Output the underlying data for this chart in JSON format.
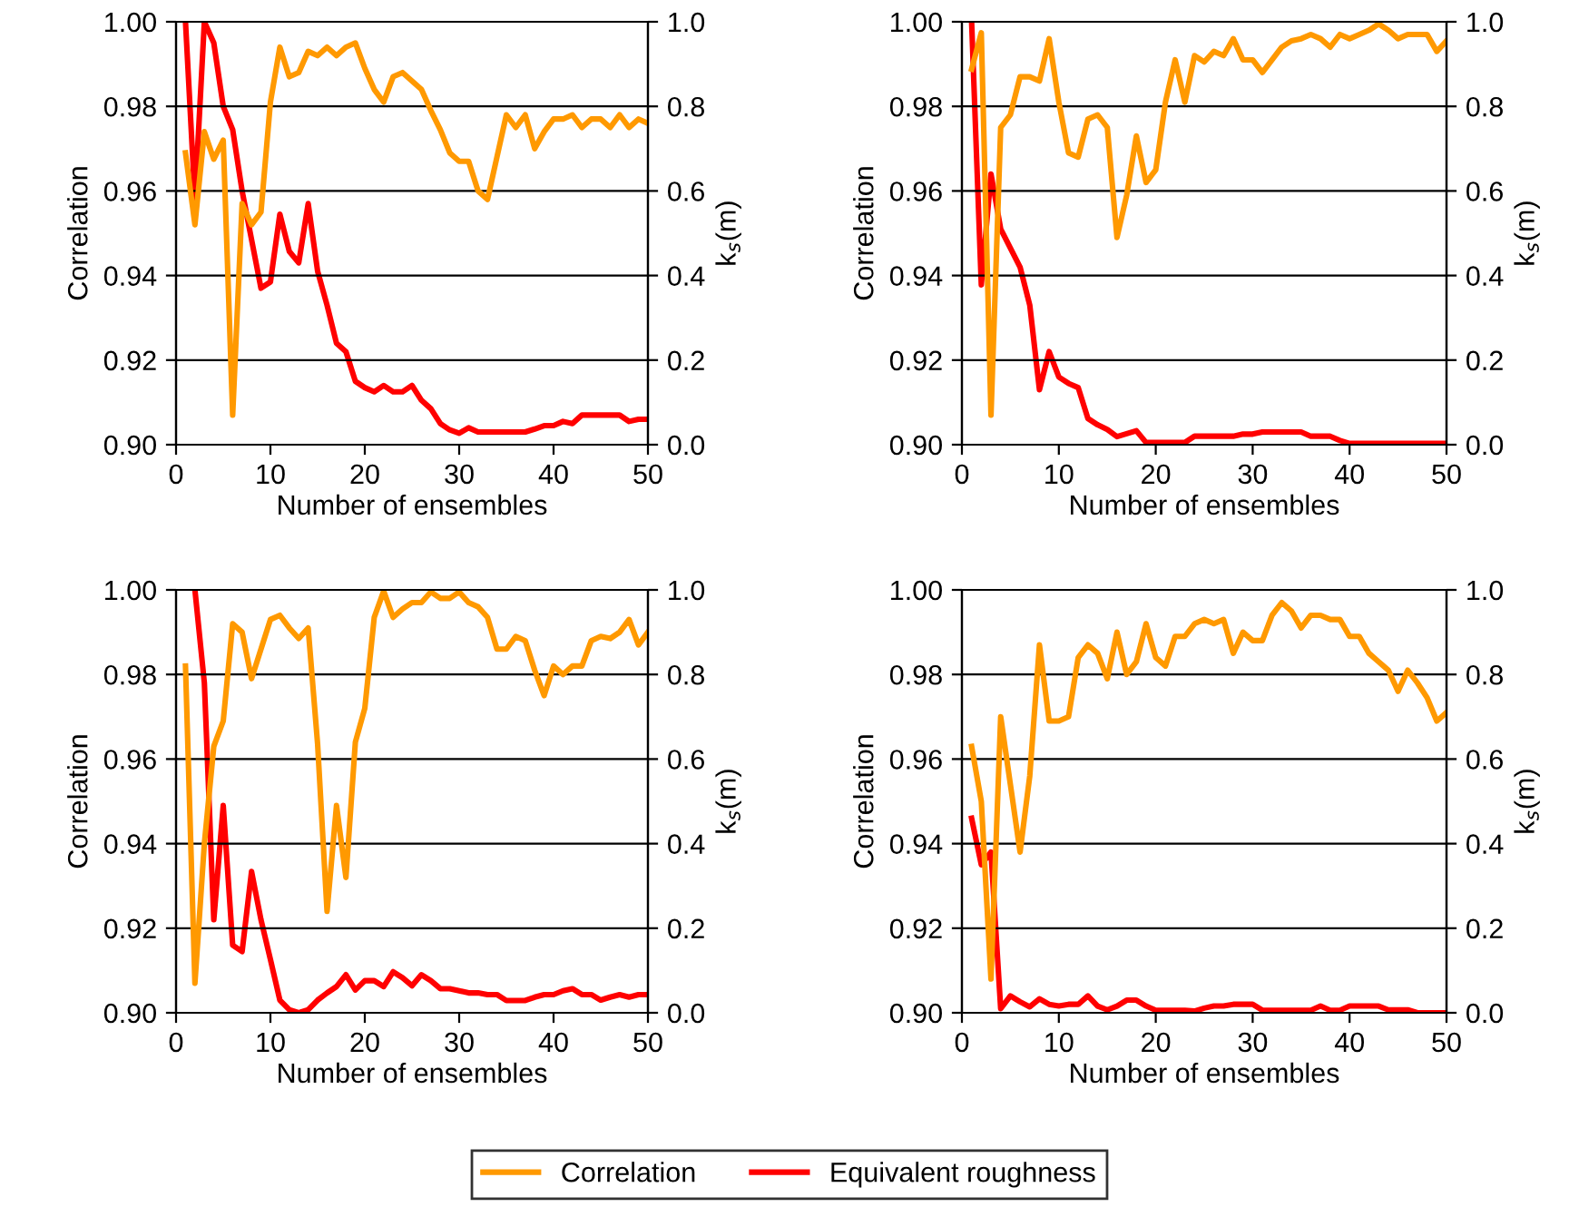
{
  "chart_data": [
    {
      "type": "line",
      "xlabel": "Number of ensembles",
      "ylabel": "Correlation",
      "y2label": "k$_{s}$(m)",
      "grid": "y",
      "tick_labels": "xy",
      "legend": "bottom",
      "x": [
        1,
        2,
        3,
        4,
        5,
        6,
        7,
        8,
        9,
        10,
        11,
        12,
        13,
        14,
        15,
        16,
        17,
        18,
        19,
        20,
        21,
        22,
        23,
        24,
        25,
        26,
        27,
        28,
        29,
        30,
        31,
        32,
        33,
        34,
        35,
        36,
        37,
        38,
        39,
        40,
        41,
        42,
        43,
        44,
        45,
        46,
        47,
        48,
        49,
        50
      ],
      "xlim": [
        0,
        50
      ],
      "xticks": [
        0,
        10,
        20,
        30,
        40,
        50
      ],
      "ylim": [
        0.9,
        1.0
      ],
      "yticks": [
        {
          "value": 0.9,
          "label": "0.90"
        },
        {
          "value": 0.92,
          "label": "0.92"
        },
        {
          "value": 0.94,
          "label": "0.94"
        },
        {
          "value": 0.96,
          "label": "0.96"
        },
        {
          "value": 0.98,
          "label": "0.98"
        },
        {
          "value": 1.0,
          "label": "1.00"
        }
      ],
      "y2lim": [
        0,
        1
      ],
      "y2ticks": [
        {
          "value": 0,
          "label": "0.0"
        },
        {
          "value": 0.2,
          "label": "0.2"
        },
        {
          "value": 0.4,
          "label": "0.4"
        },
        {
          "value": 0.6,
          "label": "0.6"
        },
        {
          "value": 0.8,
          "label": "0.8"
        },
        {
          "value": 1,
          "label": "1.0"
        }
      ],
      "series": [
        {
          "name": "Correlation",
          "color": "#ff9900",
          "values": [
            0.969,
            0.952,
            0.974,
            0.9675,
            0.972,
            0.907,
            0.957,
            0.952,
            0.955,
            0.981,
            0.994,
            0.987,
            0.988,
            0.993,
            0.992,
            0.994,
            0.992,
            0.994,
            0.995,
            0.989,
            0.984,
            0.981,
            0.987,
            0.988,
            0.986,
            0.984,
            0.979,
            0.9745,
            0.969,
            0.967,
            0.967,
            0.96,
            0.958,
            0.968,
            0.978,
            0.975,
            0.978,
            0.97,
            0.974,
            0.977,
            0.977,
            0.978,
            0.975,
            0.977,
            0.977,
            0.975,
            0.978,
            0.975,
            0.977,
            0.976
          ]
        },
        {
          "name": "Equivalent roughness",
          "color": "#ff0000",
          "axis": "y2",
          "values": [
            1.0,
            0.58,
            1.0,
            0.95,
            0.8,
            0.745,
            0.6,
            0.485,
            0.37,
            0.385,
            0.545,
            0.457,
            0.43,
            0.57,
            0.41,
            0.33,
            0.24,
            0.22,
            0.15,
            0.135,
            0.125,
            0.14,
            0.125,
            0.125,
            0.14,
            0.105,
            0.085,
            0.05,
            0.035,
            0.027,
            0.04,
            0.03,
            0.03,
            0.03,
            0.03,
            0.03,
            0.03,
            0.037,
            0.045,
            0.045,
            0.055,
            0.05,
            0.07,
            0.07,
            0.07,
            0.07,
            0.07,
            0.055,
            0.06,
            0.06
          ]
        }
      ]
    },
    {
      "type": "line",
      "xlabel": "Number of ensembles",
      "ylabel": "Correlation",
      "y2label": "k$_{s}$(m)",
      "grid": "y",
      "tick_labels": "xy",
      "x": [
        1,
        2,
        3,
        4,
        5,
        6,
        7,
        8,
        9,
        10,
        11,
        12,
        13,
        14,
        15,
        16,
        17,
        18,
        19,
        20,
        21,
        22,
        23,
        24,
        25,
        26,
        27,
        28,
        29,
        30,
        31,
        32,
        33,
        34,
        35,
        36,
        37,
        38,
        39,
        40,
        41,
        42,
        43,
        44,
        45,
        46,
        47,
        48,
        49,
        50
      ],
      "xlim": [
        0,
        50
      ],
      "xticks": [
        0,
        10,
        20,
        30,
        40,
        50
      ],
      "ylim": [
        0.9,
        1.0
      ],
      "yticks": [
        {
          "value": 0.9,
          "label": "0.90"
        },
        {
          "value": 0.92,
          "label": "0.92"
        },
        {
          "value": 0.94,
          "label": "0.94"
        },
        {
          "value": 0.96,
          "label": "0.96"
        },
        {
          "value": 0.98,
          "label": "0.98"
        },
        {
          "value": 1.0,
          "label": "1.00"
        }
      ],
      "y2lim": [
        0,
        1
      ],
      "y2ticks": [
        {
          "value": 0,
          "label": "0.0"
        },
        {
          "value": 0.2,
          "label": "0.2"
        },
        {
          "value": 0.4,
          "label": "0.4"
        },
        {
          "value": 0.6,
          "label": "0.6"
        },
        {
          "value": 0.8,
          "label": "0.8"
        },
        {
          "value": 1,
          "label": "1.0"
        }
      ],
      "series": [
        {
          "color": "#ff9900",
          "values": [
            0.9888,
            0.9974,
            0.907,
            0.975,
            0.978,
            0.987,
            0.987,
            0.986,
            0.996,
            0.981,
            0.969,
            0.968,
            0.977,
            0.978,
            0.975,
            0.949,
            0.959,
            0.973,
            0.962,
            0.965,
            0.981,
            0.991,
            0.981,
            0.992,
            0.9905,
            0.993,
            0.992,
            0.996,
            0.991,
            0.991,
            0.988,
            0.991,
            0.994,
            0.9955,
            0.996,
            0.997,
            0.996,
            0.994,
            0.997,
            0.996,
            0.997,
            0.998,
            0.9995,
            0.998,
            0.996,
            0.997,
            0.997,
            0.997,
            0.993,
            0.9955
          ]
        },
        {
          "color": "#ff0000",
          "axis": "y2",
          "values": [
            1.0,
            0.378,
            0.64,
            0.51,
            0.465,
            0.42,
            0.33,
            0.13,
            0.22,
            0.16,
            0.145,
            0.135,
            0.062,
            0.047,
            0.036,
            0.019,
            0.026,
            0.033,
            0.005,
            0.005,
            0.005,
            0.005,
            0.005,
            0.02,
            0.02,
            0.02,
            0.02,
            0.02,
            0.025,
            0.025,
            0.03,
            0.03,
            0.03,
            0.03,
            0.03,
            0.02,
            0.02,
            0.02,
            0.01,
            0.003,
            0.003,
            0.003,
            0.003,
            0.003,
            0.003,
            0.003,
            0.003,
            0.003,
            0.003,
            0.003
          ]
        }
      ]
    },
    {
      "type": "line",
      "xlabel": "Number of ensembles",
      "ylabel": "Correlation",
      "y2label": "k$_{s}$(m)",
      "grid": "y",
      "tick_labels": "xy",
      "x": [
        1,
        2,
        3,
        4,
        5,
        6,
        7,
        8,
        9,
        10,
        11,
        12,
        13,
        14,
        15,
        16,
        17,
        18,
        19,
        20,
        21,
        22,
        23,
        24,
        25,
        26,
        27,
        28,
        29,
        30,
        31,
        32,
        33,
        34,
        35,
        36,
        37,
        38,
        39,
        40,
        41,
        42,
        43,
        44,
        45,
        46,
        47,
        48,
        49,
        50
      ],
      "xlim": [
        0,
        50
      ],
      "xticks": [
        0,
        10,
        20,
        30,
        40,
        50
      ],
      "ylim": [
        0.9,
        1.0
      ],
      "yticks": [
        {
          "value": 0.9,
          "label": "0.90"
        },
        {
          "value": 0.92,
          "label": "0.92"
        },
        {
          "value": 0.94,
          "label": "0.94"
        },
        {
          "value": 0.96,
          "label": "0.96"
        },
        {
          "value": 0.98,
          "label": "0.98"
        },
        {
          "value": 1.0,
          "label": "1.00"
        }
      ],
      "y2lim": [
        0,
        1
      ],
      "y2ticks": [
        {
          "value": 0,
          "label": "0.0"
        },
        {
          "value": 0.2,
          "label": "0.2"
        },
        {
          "value": 0.4,
          "label": "0.4"
        },
        {
          "value": 0.6,
          "label": "0.6"
        },
        {
          "value": 0.8,
          "label": "0.8"
        },
        {
          "value": 1,
          "label": "1.0"
        }
      ],
      "series": [
        {
          "color": "#ff9900",
          "values": [
            0.982,
            0.907,
            0.94,
            0.963,
            0.969,
            0.992,
            0.99,
            0.979,
            0.986,
            0.993,
            0.994,
            0.991,
            0.9885,
            0.991,
            0.9635,
            0.924,
            0.949,
            0.932,
            0.964,
            0.972,
            0.9935,
            0.9997,
            0.9935,
            0.9955,
            0.997,
            0.997,
            0.9995,
            0.998,
            0.998,
            0.9995,
            0.997,
            0.996,
            0.9935,
            0.986,
            0.986,
            0.989,
            0.988,
            0.981,
            0.975,
            0.982,
            0.98,
            0.982,
            0.982,
            0.988,
            0.989,
            0.9885,
            0.99,
            0.993,
            0.987,
            0.99
          ]
        },
        {
          "color": "#ff0000",
          "axis": "y2",
          "values": [
            null,
            1.0,
            0.78,
            0.22,
            0.49,
            0.16,
            0.145,
            0.334,
            0.22,
            0.126,
            0.03,
            0.007,
            0.0,
            0.007,
            0.03,
            0.047,
            0.062,
            0.09,
            0.054,
            0.076,
            0.076,
            0.062,
            0.097,
            0.083,
            0.064,
            0.09,
            0.076,
            0.057,
            0.057,
            0.052,
            0.047,
            0.047,
            0.043,
            0.043,
            0.029,
            0.029,
            0.029,
            0.037,
            0.043,
            0.043,
            0.052,
            0.057,
            0.043,
            0.043,
            0.03,
            0.037,
            0.043,
            0.037,
            0.043,
            0.043
          ]
        }
      ]
    },
    {
      "type": "line",
      "xlabel": "Number of ensembles",
      "ylabel": "Correlation",
      "y2label": "k$_{s}$(m)",
      "grid": "y",
      "tick_labels": "xy",
      "x": [
        1,
        2,
        3,
        4,
        5,
        6,
        7,
        8,
        9,
        10,
        11,
        12,
        13,
        14,
        15,
        16,
        17,
        18,
        19,
        20,
        21,
        22,
        23,
        24,
        25,
        26,
        27,
        28,
        29,
        30,
        31,
        32,
        33,
        34,
        35,
        36,
        37,
        38,
        39,
        40,
        41,
        42,
        43,
        44,
        45,
        46,
        47,
        48,
        49,
        50
      ],
      "xlim": [
        0,
        50
      ],
      "xticks": [
        0,
        10,
        20,
        30,
        40,
        50
      ],
      "ylim": [
        0.9,
        1.0
      ],
      "yticks": [
        {
          "value": 0.9,
          "label": "0.90"
        },
        {
          "value": 0.92,
          "label": "0.92"
        },
        {
          "value": 0.94,
          "label": "0.94"
        },
        {
          "value": 0.96,
          "label": "0.96"
        },
        {
          "value": 0.98,
          "label": "0.98"
        },
        {
          "value": 1.0,
          "label": "1.00"
        }
      ],
      "y2lim": [
        0,
        1
      ],
      "y2ticks": [
        {
          "value": 0,
          "label": "0.0"
        },
        {
          "value": 0.2,
          "label": "0.2"
        },
        {
          "value": 0.4,
          "label": "0.4"
        },
        {
          "value": 0.6,
          "label": "0.6"
        },
        {
          "value": 0.8,
          "label": "0.8"
        },
        {
          "value": 1,
          "label": "1.0"
        }
      ],
      "series": [
        {
          "color": "#ff9900",
          "values": [
            0.963,
            0.95,
            0.908,
            0.97,
            0.954,
            0.938,
            0.956,
            0.987,
            0.969,
            0.969,
            0.97,
            0.984,
            0.987,
            0.985,
            0.979,
            0.99,
            0.98,
            0.983,
            0.992,
            0.984,
            0.982,
            0.989,
            0.989,
            0.992,
            0.993,
            0.992,
            0.993,
            0.985,
            0.99,
            0.988,
            0.988,
            0.994,
            0.997,
            0.995,
            0.991,
            0.994,
            0.994,
            0.993,
            0.993,
            0.989,
            0.989,
            0.985,
            0.983,
            0.981,
            0.976,
            0.981,
            0.978,
            0.9745,
            0.969,
            0.971
          ]
        },
        {
          "color": "#ff0000",
          "axis": "y2",
          "values": [
            0.46,
            0.35,
            0.38,
            0.01,
            0.04,
            0.026,
            0.014,
            0.033,
            0.02,
            0.016,
            0.02,
            0.02,
            0.04,
            0.016,
            0.007,
            0.016,
            0.03,
            0.03,
            0.016,
            0.006,
            0.006,
            0.006,
            0.006,
            0.004,
            0.011,
            0.016,
            0.016,
            0.02,
            0.02,
            0.02,
            0.006,
            0.006,
            0.006,
            0.006,
            0.006,
            0.006,
            0.016,
            0.006,
            0.006,
            0.016,
            0.016,
            0.016,
            0.016,
            0.007,
            0.007,
            0.007,
            0.0,
            0.0,
            0.0,
            0.0
          ]
        }
      ]
    }
  ]
}
